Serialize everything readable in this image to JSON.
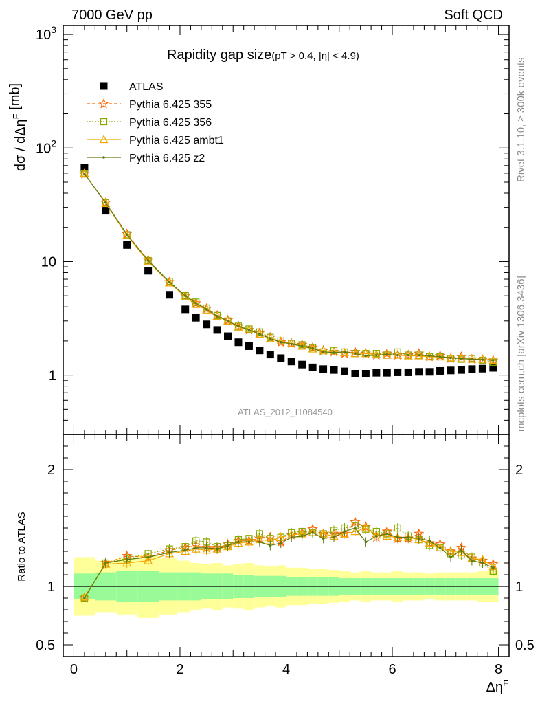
{
  "header": {
    "left": "7000 GeV pp",
    "right": "Soft QCD"
  },
  "side_text": {
    "rivet": "Rivet 3.1.10, ≥ 300k events",
    "mcplots": "mcplots.cern.ch [arXiv:1306.3436]"
  },
  "colors": {
    "atlas": "#000000",
    "p355": "#ff6600",
    "p356": "#88aa00",
    "ambt1": "#f0a800",
    "z2": "#5c7a10",
    "band_inner": "#98fb98",
    "band_outer": "#ffff99"
  },
  "chart_data": {
    "type": "scatter",
    "title": "Rapidity gap size",
    "title_cut": "(pT > 0.4, |η| < 4.9)",
    "analysis_label": "ATLAS_2012_I1084540",
    "xlabel": "ΔηF",
    "ylabel": "dσ / dΔηF [mb]",
    "ratio_ylabel": "Ratio to ATLAS",
    "xlim": [
      -0.2,
      8.2
    ],
    "ylim": [
      0.3,
      1200
    ],
    "yscale": "log",
    "ratio_ylim": [
      0.4,
      2.3
    ],
    "x_ticks": [
      "0",
      "2",
      "4",
      "6",
      "8"
    ],
    "y_ticks": [
      "1",
      "10",
      "10^2",
      "10^3"
    ],
    "ratio_ticks": [
      "0.5",
      "1",
      "2"
    ],
    "legend": [
      "ATLAS",
      "Pythia 6.425 355",
      "Pythia 6.425 356",
      "Pythia 6.425 ambt1",
      "Pythia 6.425 z2"
    ],
    "legend_position": "top-left",
    "x": [
      0.2,
      0.6,
      1.0,
      1.4,
      1.8,
      2.1,
      2.3,
      2.5,
      2.7,
      2.9,
      3.1,
      3.3,
      3.5,
      3.7,
      3.9,
      4.1,
      4.3,
      4.5,
      4.7,
      4.9,
      5.1,
      5.3,
      5.5,
      5.7,
      5.9,
      6.1,
      6.3,
      6.5,
      6.7,
      6.9,
      7.1,
      7.3,
      7.5,
      7.7,
      7.9
    ],
    "series": [
      {
        "name": "ATLAS",
        "values": [
          67,
          28,
          14,
          8.3,
          5.1,
          3.8,
          3.2,
          2.8,
          2.5,
          2.2,
          1.95,
          1.8,
          1.65,
          1.52,
          1.41,
          1.32,
          1.24,
          1.17,
          1.13,
          1.11,
          1.08,
          1.03,
          1.03,
          1.05,
          1.05,
          1.06,
          1.06,
          1.07,
          1.07,
          1.09,
          1.1,
          1.11,
          1.13,
          1.14,
          1.16
        ]
      },
      {
        "name": "Pythia 6.425 355",
        "values": [
          59,
          33,
          17.5,
          10.3,
          6.6,
          5.0,
          4.3,
          3.85,
          3.35,
          3.05,
          2.7,
          2.5,
          2.35,
          2.15,
          1.95,
          1.9,
          1.85,
          1.75,
          1.65,
          1.6,
          1.55,
          1.6,
          1.55,
          1.5,
          1.55,
          1.5,
          1.5,
          1.55,
          1.45,
          1.48,
          1.4,
          1.45,
          1.38,
          1.37,
          1.35
        ]
      },
      {
        "name": "Pythia 6.425 356",
        "values": [
          59,
          33,
          17.2,
          10.2,
          6.7,
          5.0,
          4.4,
          3.9,
          3.35,
          3.0,
          2.7,
          2.55,
          2.4,
          2.15,
          2.0,
          1.9,
          1.85,
          1.75,
          1.6,
          1.65,
          1.6,
          1.55,
          1.55,
          1.55,
          1.5,
          1.6,
          1.5,
          1.5,
          1.45,
          1.45,
          1.4,
          1.38,
          1.4,
          1.35,
          1.3
        ]
      },
      {
        "name": "Pythia 6.425 ambt1",
        "values": [
          60,
          32.5,
          17.0,
          10.0,
          6.5,
          4.9,
          4.2,
          3.75,
          3.3,
          3.0,
          2.65,
          2.5,
          2.3,
          2.1,
          2.0,
          1.9,
          1.8,
          1.7,
          1.65,
          1.6,
          1.58,
          1.55,
          1.55,
          1.52,
          1.5,
          1.5,
          1.48,
          1.48,
          1.45,
          1.45,
          1.42,
          1.4,
          1.38,
          1.38,
          1.35
        ]
      },
      {
        "name": "Pythia 6.425 z2",
        "values": [
          59,
          33,
          17.3,
          10.2,
          6.6,
          5.0,
          4.3,
          3.8,
          3.3,
          3.0,
          2.7,
          2.5,
          2.3,
          2.1,
          1.95,
          1.88,
          1.8,
          1.72,
          1.6,
          1.58,
          1.6,
          1.55,
          1.48,
          1.5,
          1.52,
          1.5,
          1.5,
          1.5,
          1.48,
          1.45,
          1.42,
          1.4,
          1.38,
          1.37,
          1.35
        ]
      }
    ],
    "ratio_series": [
      {
        "name": "Pythia 6.425 355",
        "values": [
          0.9,
          1.2,
          1.26,
          1.25,
          1.31,
          1.33,
          1.35,
          1.33,
          1.33,
          1.36,
          1.39,
          1.39,
          1.41,
          1.42,
          1.38,
          1.44,
          1.46,
          1.49,
          1.45,
          1.45,
          1.45,
          1.55,
          1.51,
          1.42,
          1.47,
          1.41,
          1.41,
          1.45,
          1.37,
          1.36,
          1.3,
          1.33,
          1.24,
          1.22,
          1.19
        ]
      },
      {
        "name": "Pythia 6.425 356",
        "values": [
          0.9,
          1.2,
          1.24,
          1.28,
          1.32,
          1.34,
          1.39,
          1.38,
          1.34,
          1.35,
          1.4,
          1.41,
          1.45,
          1.41,
          1.42,
          1.46,
          1.47,
          1.46,
          1.45,
          1.48,
          1.5,
          1.52,
          1.49,
          1.47,
          1.45,
          1.5,
          1.43,
          1.4,
          1.35,
          1.33,
          1.28,
          1.27,
          1.25,
          1.2,
          1.13
        ]
      },
      {
        "name": "Pythia 6.425 ambt1",
        "values": [
          0.91,
          1.19,
          1.2,
          1.22,
          1.28,
          1.3,
          1.32,
          1.31,
          1.32,
          1.34,
          1.37,
          1.38,
          1.4,
          1.39,
          1.42,
          1.44,
          1.45,
          1.46,
          1.45,
          1.43,
          1.45,
          1.47,
          1.5,
          1.44,
          1.43,
          1.42,
          1.42,
          1.4,
          1.37,
          1.33,
          1.3,
          1.29,
          1.24,
          1.23,
          1.17
        ]
      },
      {
        "name": "Pythia 6.425 z2",
        "values": [
          0.9,
          1.2,
          1.23,
          1.25,
          1.29,
          1.31,
          1.33,
          1.33,
          1.32,
          1.35,
          1.38,
          1.38,
          1.38,
          1.35,
          1.37,
          1.42,
          1.43,
          1.46,
          1.41,
          1.42,
          1.47,
          1.5,
          1.38,
          1.43,
          1.45,
          1.42,
          1.42,
          1.41,
          1.39,
          1.33,
          1.25,
          1.31,
          1.22,
          1.2,
          1.16
        ]
      }
    ],
    "uncertainty_band": {
      "stat": [
        0.11,
        0.12,
        0.13,
        0.13,
        0.12,
        0.12,
        0.12,
        0.11,
        0.11,
        0.11,
        0.1,
        0.1,
        0.09,
        0.09,
        0.09,
        0.08,
        0.08,
        0.08,
        0.08,
        0.08,
        0.07,
        0.07,
        0.07,
        0.07,
        0.07,
        0.07,
        0.07,
        0.07,
        0.07,
        0.07,
        0.07,
        0.07,
        0.07,
        0.07,
        0.07
      ],
      "total": [
        0.25,
        0.22,
        0.24,
        0.27,
        0.24,
        0.22,
        0.2,
        0.19,
        0.2,
        0.18,
        0.19,
        0.2,
        0.18,
        0.17,
        0.18,
        0.16,
        0.16,
        0.15,
        0.15,
        0.14,
        0.13,
        0.12,
        0.13,
        0.12,
        0.12,
        0.13,
        0.12,
        0.12,
        0.11,
        0.12,
        0.12,
        0.12,
        0.12,
        0.13,
        0.13
      ]
    }
  }
}
